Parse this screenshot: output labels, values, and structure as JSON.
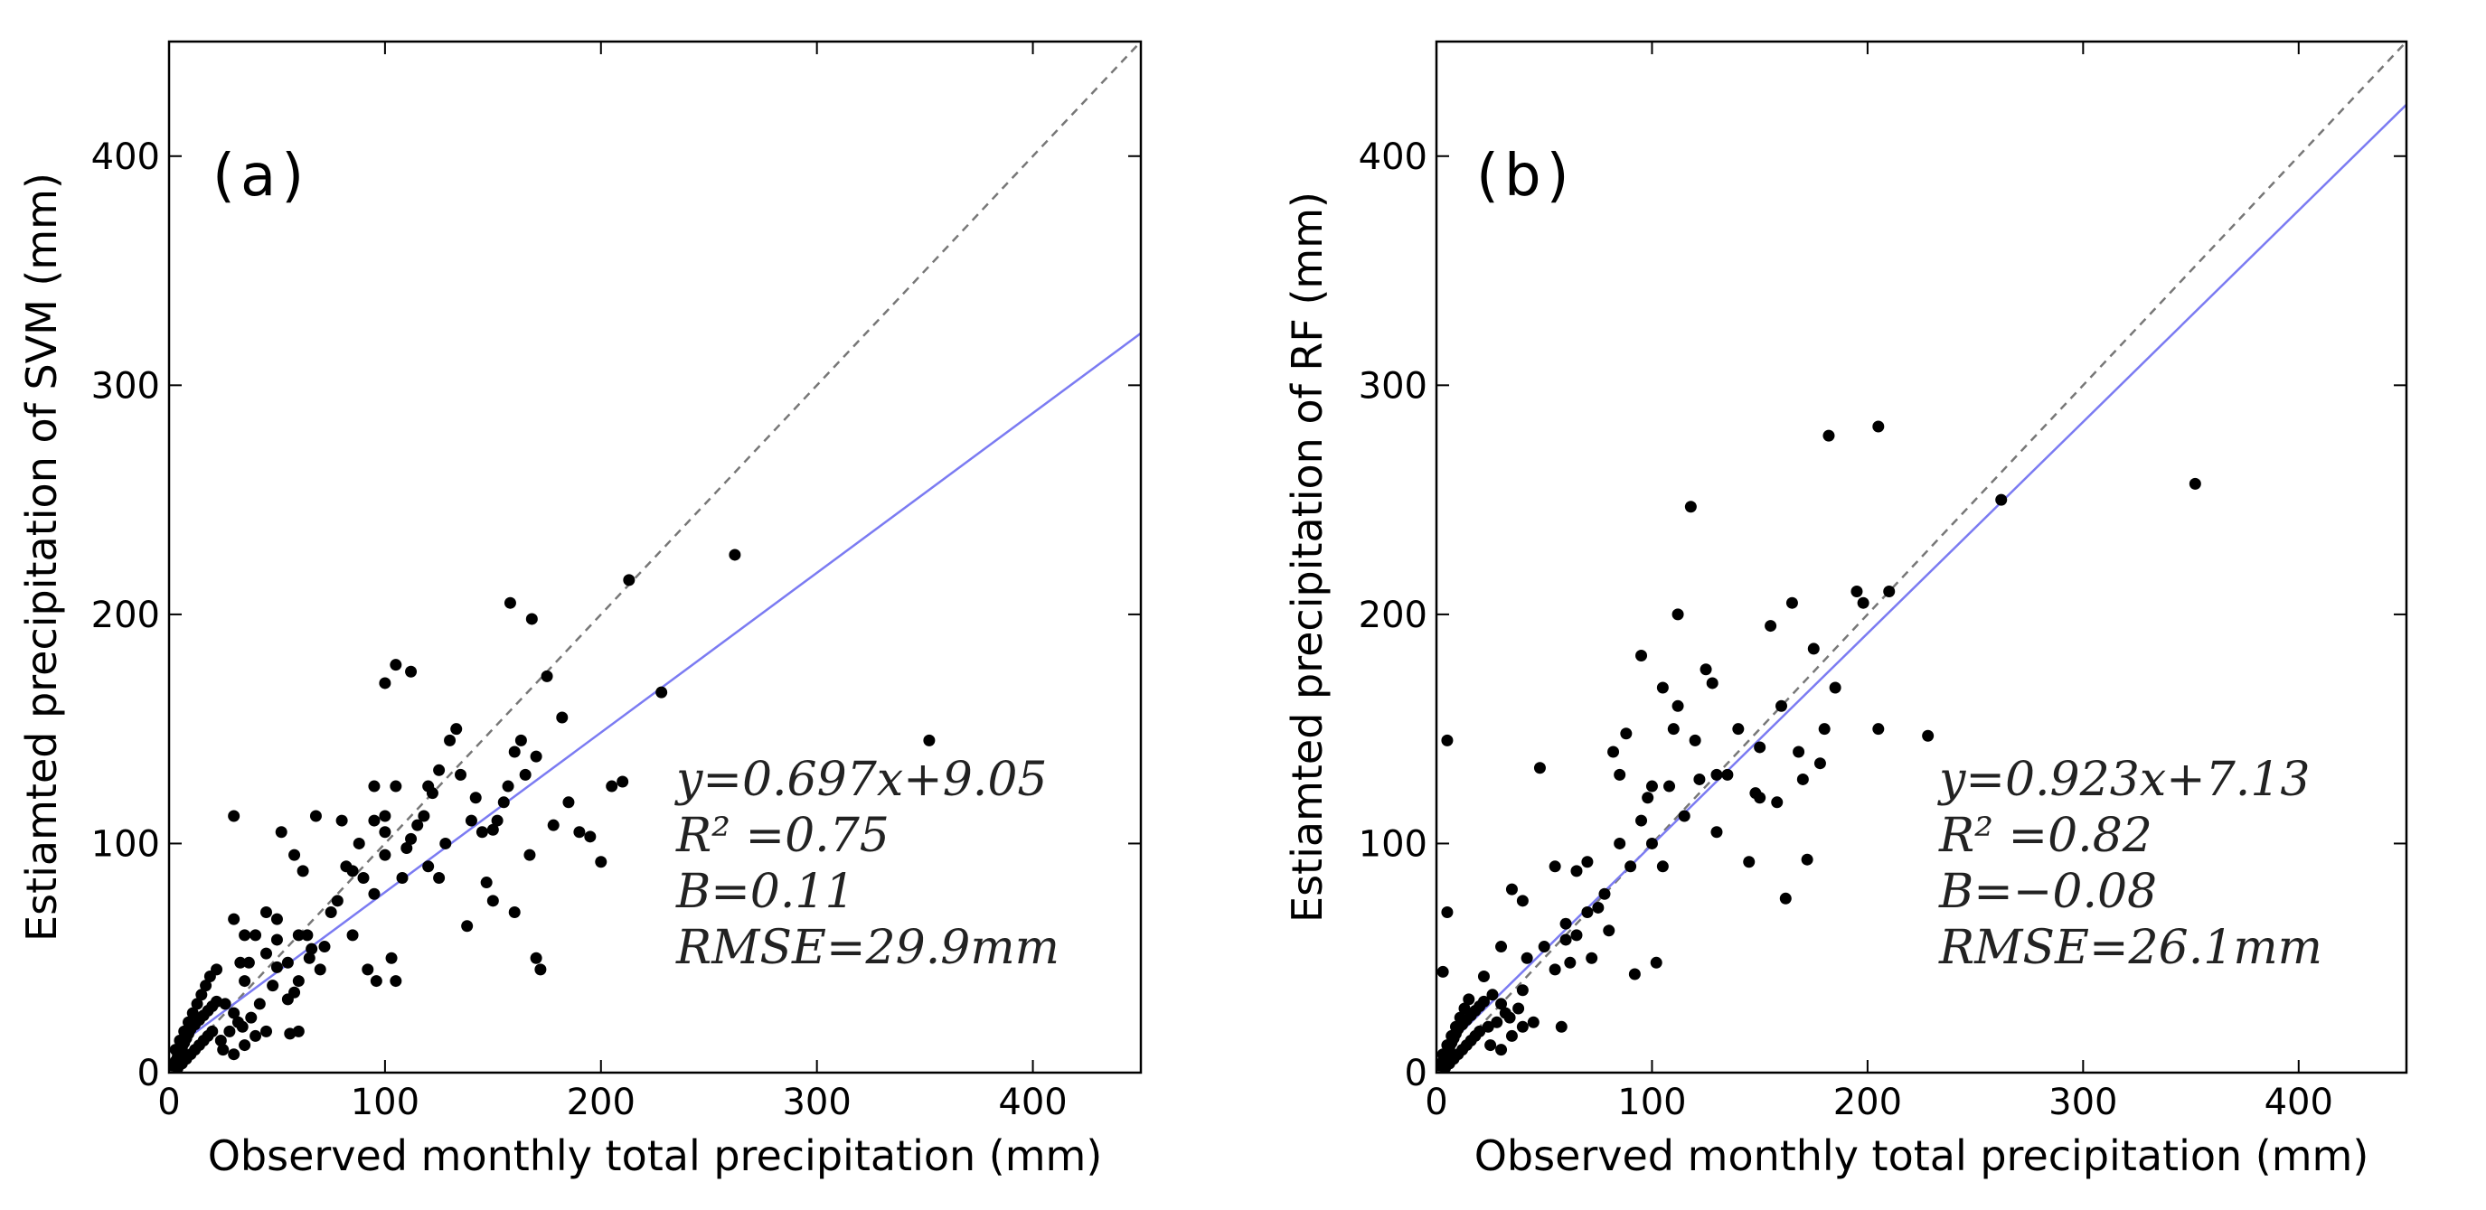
{
  "chart_data": [
    {
      "type": "scatter",
      "panel_label": "(a)",
      "xlabel": "Observed monthly total precipitation (mm)",
      "ylabel": "Estiamted precipitation of SVM (mm)",
      "xlim": [
        0,
        450
      ],
      "ylim": [
        0,
        450
      ],
      "xticks": [
        0,
        100,
        200,
        300,
        400
      ],
      "yticks": [
        0,
        100,
        200,
        300,
        400
      ],
      "xtick_labels": [
        "0",
        "100",
        "200",
        "300",
        "400"
      ],
      "ytick_labels": [
        "0",
        "100",
        "200",
        "300",
        "400"
      ],
      "reference_line": {
        "slope": 1,
        "intercept": 0,
        "style": "dashed",
        "color": "#777777"
      },
      "fit_line": {
        "slope": 0.697,
        "intercept": 9.05,
        "color": "#7b7bf2"
      },
      "stats": [
        "y=0.697x+9.05",
        "R² =0.75",
        "B=0.11",
        "RMSE=29.9mm"
      ],
      "points": [
        [
          2,
          3
        ],
        [
          3,
          5
        ],
        [
          4,
          7
        ],
        [
          5,
          9
        ],
        [
          6,
          11
        ],
        [
          7,
          13
        ],
        [
          8,
          15
        ],
        [
          9,
          17
        ],
        [
          10,
          19
        ],
        [
          12,
          21
        ],
        [
          14,
          23
        ],
        [
          16,
          25
        ],
        [
          18,
          27
        ],
        [
          20,
          29
        ],
        [
          22,
          31
        ],
        [
          3,
          10
        ],
        [
          5,
          14
        ],
        [
          7,
          18
        ],
        [
          9,
          22
        ],
        [
          11,
          26
        ],
        [
          13,
          30
        ],
        [
          15,
          34
        ],
        [
          17,
          38
        ],
        [
          19,
          42
        ],
        [
          4,
          2
        ],
        [
          6,
          4
        ],
        [
          8,
          6
        ],
        [
          10,
          8
        ],
        [
          12,
          10
        ],
        [
          14,
          12
        ],
        [
          16,
          14
        ],
        [
          18,
          16
        ],
        [
          20,
          18
        ],
        [
          24,
          14
        ],
        [
          28,
          18
        ],
        [
          32,
          22
        ],
        [
          26,
          30
        ],
        [
          30,
          26
        ],
        [
          34,
          20
        ],
        [
          38,
          24
        ],
        [
          25,
          10
        ],
        [
          30,
          8
        ],
        [
          35,
          12
        ],
        [
          40,
          16
        ],
        [
          45,
          18
        ],
        [
          22,
          45
        ],
        [
          35,
          40
        ],
        [
          42,
          30
        ],
        [
          55,
          48
        ],
        [
          60,
          40
        ],
        [
          65,
          50
        ],
        [
          58,
          35
        ],
        [
          50,
          46
        ],
        [
          48,
          38
        ],
        [
          30,
          67
        ],
        [
          37,
          48
        ],
        [
          45,
          52
        ],
        [
          52,
          105
        ],
        [
          58,
          95
        ],
        [
          60,
          60
        ],
        [
          64,
          60
        ],
        [
          66,
          54
        ],
        [
          70,
          45
        ],
        [
          75,
          70
        ],
        [
          78,
          75
        ],
        [
          82,
          90
        ],
        [
          85,
          88
        ],
        [
          88,
          100
        ],
        [
          90,
          85
        ],
        [
          92,
          45
        ],
        [
          96,
          40
        ],
        [
          95,
          78
        ],
        [
          100,
          95
        ],
        [
          100,
          105
        ],
        [
          103,
          50
        ],
        [
          105,
          40
        ],
        [
          105,
          125
        ],
        [
          108,
          85
        ],
        [
          110,
          98
        ],
        [
          112,
          102
        ],
        [
          115,
          108
        ],
        [
          118,
          112
        ],
        [
          120,
          90
        ],
        [
          122,
          122
        ],
        [
          125,
          85
        ],
        [
          128,
          100
        ],
        [
          130,
          145
        ],
        [
          133,
          150
        ],
        [
          138,
          64
        ],
        [
          142,
          120
        ],
        [
          145,
          105
        ],
        [
          147,
          83
        ],
        [
          150,
          75
        ],
        [
          152,
          110
        ],
        [
          155,
          118
        ],
        [
          157,
          125
        ],
        [
          158,
          205
        ],
        [
          160,
          70
        ],
        [
          163,
          145
        ],
        [
          165,
          130
        ],
        [
          167,
          95
        ],
        [
          168,
          198
        ],
        [
          170,
          50
        ],
        [
          172,
          45
        ],
        [
          175,
          173
        ],
        [
          178,
          108
        ],
        [
          182,
          155
        ],
        [
          185,
          118
        ],
        [
          190,
          105
        ],
        [
          195,
          103
        ],
        [
          200,
          92
        ],
        [
          205,
          125
        ],
        [
          210,
          127
        ],
        [
          213,
          215
        ],
        [
          228,
          166
        ],
        [
          262,
          226
        ],
        [
          352,
          145
        ],
        [
          100,
          170
        ],
        [
          105,
          178
        ],
        [
          112,
          175
        ],
        [
          125,
          132
        ],
        [
          135,
          130
        ],
        [
          140,
          110
        ],
        [
          160,
          140
        ],
        [
          170,
          138
        ],
        [
          80,
          110
        ],
        [
          85,
          60
        ],
        [
          95,
          125
        ],
        [
          72,
          55
        ],
        [
          68,
          112
        ],
        [
          40,
          60
        ],
        [
          50,
          58
        ],
        [
          55,
          32
        ],
        [
          62,
          88
        ],
        [
          30,
          112
        ],
        [
          45,
          70
        ],
        [
          50,
          67
        ],
        [
          35,
          60
        ],
        [
          33,
          48
        ],
        [
          60,
          18
        ],
        [
          56,
          17
        ],
        [
          95,
          110
        ],
        [
          100,
          112
        ],
        [
          120,
          125
        ],
        [
          150,
          106
        ]
      ]
    },
    {
      "type": "scatter",
      "panel_label": "(b)",
      "xlabel": "Observed monthly total precipitation (mm)",
      "ylabel": "Estiamted precipitation of RF (mm)",
      "xlim": [
        0,
        450
      ],
      "ylim": [
        0,
        450
      ],
      "xticks": [
        0,
        100,
        200,
        300,
        400
      ],
      "yticks": [
        0,
        100,
        200,
        300,
        400
      ],
      "xtick_labels": [
        "0",
        "100",
        "200",
        "300",
        "400"
      ],
      "ytick_labels": [
        "0",
        "100",
        "200",
        "300",
        "400"
      ],
      "reference_line": {
        "slope": 1,
        "intercept": 0,
        "style": "dashed",
        "color": "#777777"
      },
      "fit_line": {
        "slope": 0.923,
        "intercept": 7.13,
        "color": "#7b7bf2"
      },
      "stats": [
        "y=0.923x+7.13",
        "R² =0.82",
        "B=−0.08",
        "RMSE=26.1mm"
      ],
      "points": [
        [
          2,
          3
        ],
        [
          3,
          5
        ],
        [
          4,
          7
        ],
        [
          5,
          9
        ],
        [
          6,
          11
        ],
        [
          7,
          13
        ],
        [
          8,
          15
        ],
        [
          9,
          17
        ],
        [
          10,
          19
        ],
        [
          12,
          21
        ],
        [
          14,
          23
        ],
        [
          16,
          25
        ],
        [
          18,
          27
        ],
        [
          20,
          29
        ],
        [
          22,
          31
        ],
        [
          3,
          8
        ],
        [
          5,
          12
        ],
        [
          7,
          16
        ],
        [
          9,
          20
        ],
        [
          11,
          24
        ],
        [
          13,
          28
        ],
        [
          15,
          32
        ],
        [
          4,
          2
        ],
        [
          6,
          4
        ],
        [
          8,
          6
        ],
        [
          10,
          8
        ],
        [
          12,
          10
        ],
        [
          14,
          12
        ],
        [
          16,
          14
        ],
        [
          18,
          16
        ],
        [
          20,
          18
        ],
        [
          24,
          20
        ],
        [
          28,
          22
        ],
        [
          32,
          26
        ],
        [
          26,
          34
        ],
        [
          30,
          30
        ],
        [
          34,
          24
        ],
        [
          38,
          28
        ],
        [
          25,
          12
        ],
        [
          30,
          10
        ],
        [
          35,
          16
        ],
        [
          40,
          20
        ],
        [
          45,
          22
        ],
        [
          5,
          145
        ],
        [
          5,
          70
        ],
        [
          3,
          44
        ],
        [
          22,
          42
        ],
        [
          30,
          55
        ],
        [
          40,
          36
        ],
        [
          42,
          50
        ],
        [
          48,
          133
        ],
        [
          55,
          90
        ],
        [
          60,
          65
        ],
        [
          62,
          48
        ],
        [
          65,
          88
        ],
        [
          70,
          92
        ],
        [
          72,
          50
        ],
        [
          78,
          78
        ],
        [
          80,
          62
        ],
        [
          82,
          140
        ],
        [
          85,
          130
        ],
        [
          88,
          148
        ],
        [
          90,
          90
        ],
        [
          92,
          43
        ],
        [
          95,
          182
        ],
        [
          98,
          120
        ],
        [
          100,
          100
        ],
        [
          102,
          48
        ],
        [
          105,
          168
        ],
        [
          108,
          125
        ],
        [
          110,
          150
        ],
        [
          112,
          200
        ],
        [
          115,
          112
        ],
        [
          118,
          247
        ],
        [
          120,
          145
        ],
        [
          122,
          128
        ],
        [
          125,
          176
        ],
        [
          128,
          170
        ],
        [
          130,
          130
        ],
        [
          135,
          130
        ],
        [
          140,
          150
        ],
        [
          145,
          92
        ],
        [
          148,
          122
        ],
        [
          150,
          142
        ],
        [
          155,
          195
        ],
        [
          158,
          118
        ],
        [
          160,
          160
        ],
        [
          162,
          76
        ],
        [
          165,
          205
        ],
        [
          168,
          140
        ],
        [
          170,
          128
        ],
        [
          172,
          93
        ],
        [
          175,
          185
        ],
        [
          178,
          135
        ],
        [
          180,
          150
        ],
        [
          182,
          278
        ],
        [
          185,
          168
        ],
        [
          195,
          210
        ],
        [
          198,
          205
        ],
        [
          205,
          282
        ],
        [
          205,
          150
        ],
        [
          210,
          210
        ],
        [
          228,
          147
        ],
        [
          262,
          250
        ],
        [
          352,
          257
        ],
        [
          60,
          58
        ],
        [
          65,
          60
        ],
        [
          70,
          70
        ],
        [
          75,
          72
        ],
        [
          85,
          100
        ],
        [
          95,
          110
        ],
        [
          100,
          125
        ],
        [
          105,
          90
        ],
        [
          112,
          160
        ],
        [
          130,
          105
        ],
        [
          150,
          120
        ],
        [
          35,
          80
        ],
        [
          40,
          75
        ],
        [
          50,
          55
        ],
        [
          55,
          45
        ],
        [
          58,
          20
        ]
      ]
    }
  ]
}
